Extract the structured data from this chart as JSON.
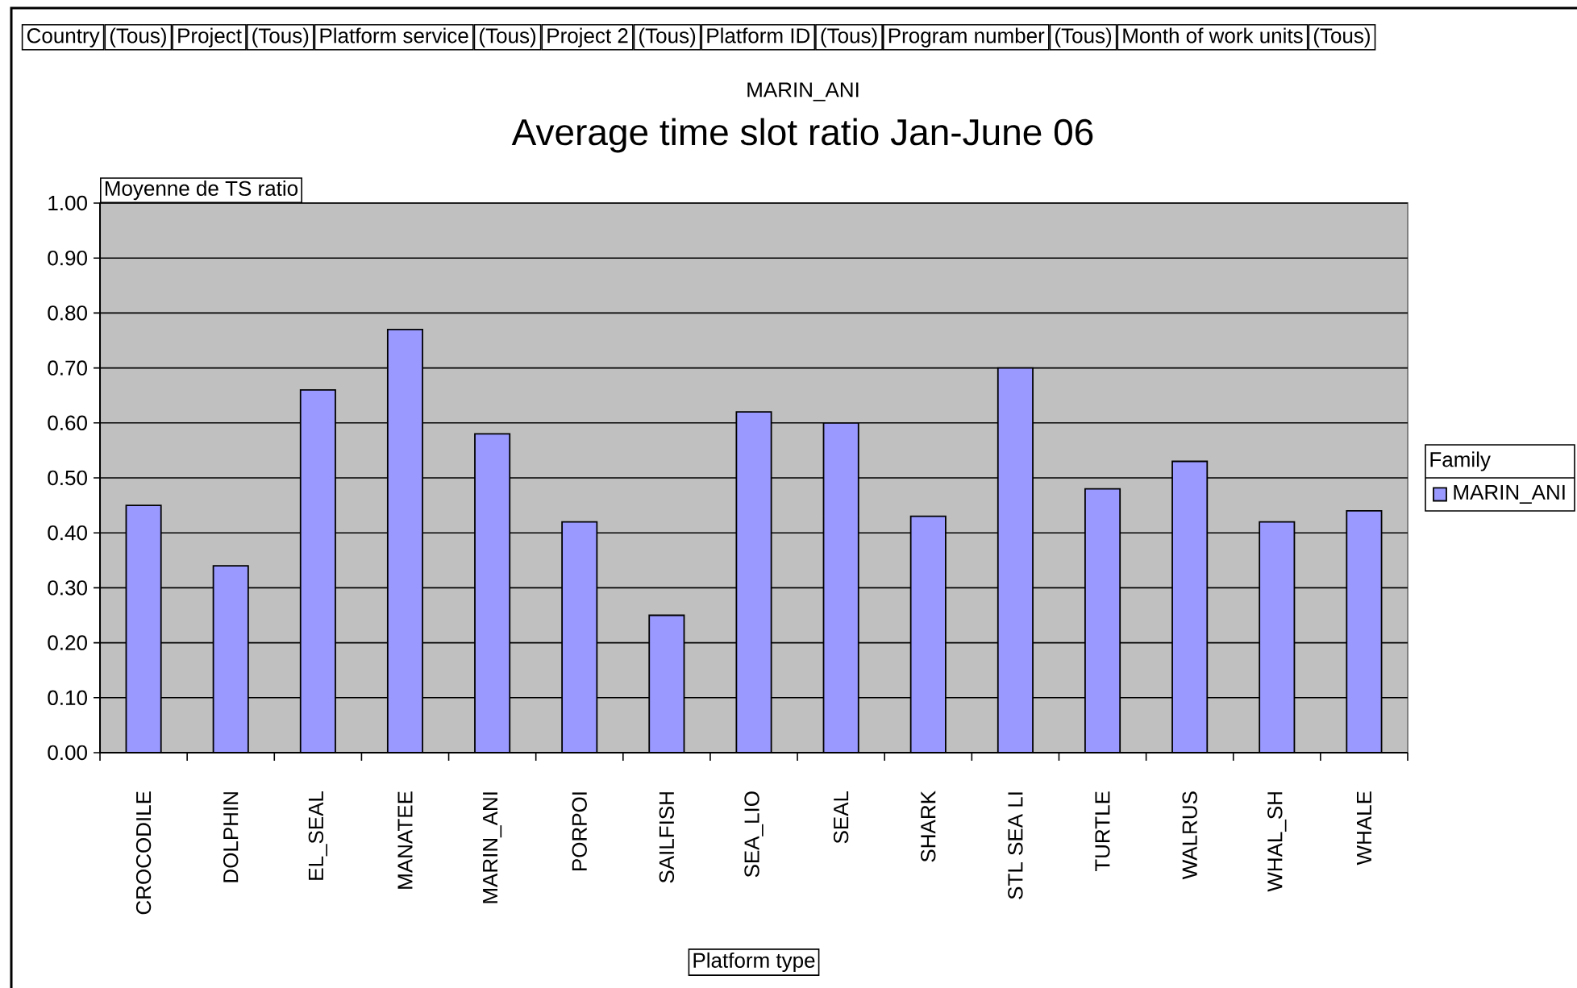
{
  "chart_data": {
    "type": "bar",
    "title": "Average time slot ratio Jan-June 06",
    "subtitle": "MARIN_ANI",
    "xlabel": "Platform type",
    "ylabel": "Moyenne de TS ratio",
    "legend_title": "Family",
    "annotations": [
      "Country",
      "(Tous)",
      "Project",
      "(Tous)",
      "Platform service",
      "(Tous)",
      "Project 2",
      "(Tous)",
      "Platform ID",
      "(Tous)",
      "Program number",
      "(Tous)",
      "Month of work units",
      "(Tous)"
    ],
    "categories": [
      "CROCODILE",
      "DOLPHIN",
      "EL_SEAL",
      "MANATEE",
      "MARIN_ANI",
      "PORPOI",
      "SAILFISH",
      "SEA_LIO",
      "SEAL",
      "SHARK",
      "STL SEA LI",
      "TURTLE",
      "WALRUS",
      "WHAL_SH",
      "WHALE"
    ],
    "series": [
      {
        "name": "MARIN_ANI",
        "color": "#9999ff",
        "values": [
          0.45,
          0.34,
          0.66,
          0.77,
          0.58,
          0.42,
          0.25,
          0.62,
          0.6,
          0.43,
          0.7,
          0.48,
          0.53,
          0.42,
          0.44
        ]
      }
    ],
    "ylim": [
      0,
      1
    ],
    "yticks": [
      {
        "value": 0,
        "label": "0.00"
      },
      {
        "value": 0.1,
        "label": "0.10"
      },
      {
        "value": 0.2,
        "label": "0.20"
      },
      {
        "value": 0.3,
        "label": "0.30"
      },
      {
        "value": 0.4,
        "label": "0.40"
      },
      {
        "value": 0.5,
        "label": "0.50"
      },
      {
        "value": 0.6,
        "label": "0.60"
      },
      {
        "value": 0.7,
        "label": "0.70"
      },
      {
        "value": 0.8,
        "label": "0.80"
      },
      {
        "value": 0.9,
        "label": "0.90"
      },
      {
        "value": 1,
        "label": "1.00"
      }
    ],
    "grid": "y",
    "legend": "right"
  }
}
